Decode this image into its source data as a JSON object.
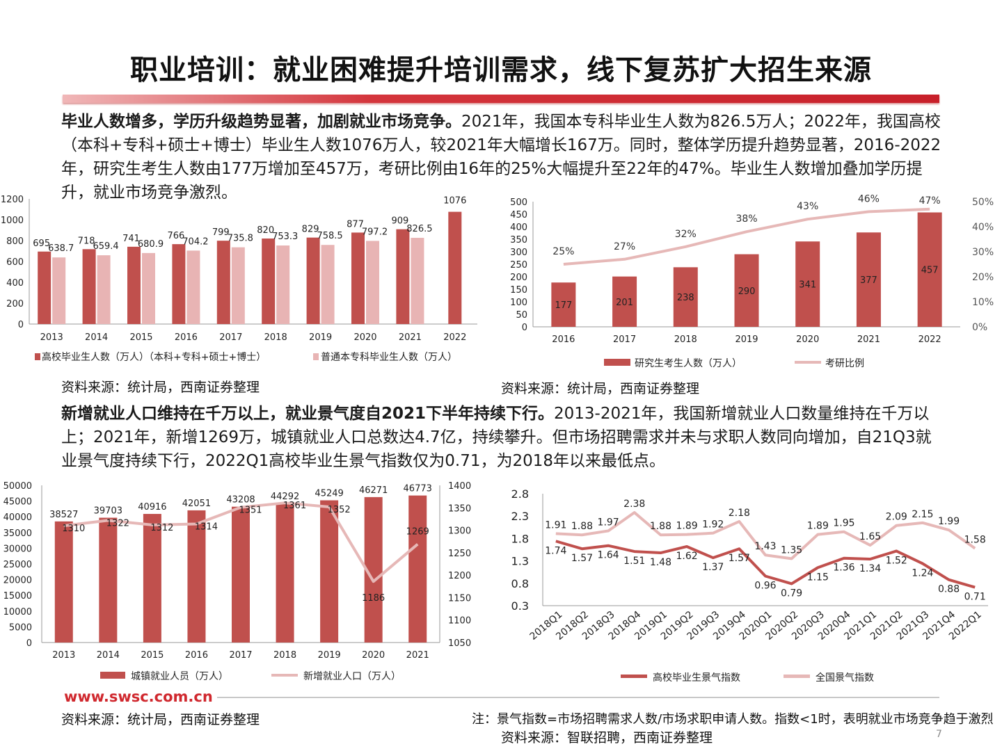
{
  "title": "职业培训：就业困难提升培训需求，线下复苏扩大招生来源",
  "section1": {
    "lead": "毕业人数增多，学历升级趋势显著，加剧就业市场竞争。",
    "body": "2021年，我国本专科毕业生人数为826.5万人；2022年，我国高校（本科+专科+硕士+博士）毕业生人数1076万人，较2021年大幅增长167万。同时，整体学历提升趋势显著，2016-2022年，研究生考生人数由177万增加至457万，考研比例由16年的25%大幅提升至22年的47%。毕业生人数增加叠加学历提升，就业市场竞争激烈。",
    "source_left": "资料来源：统计局，西南证券整理",
    "source_right": "资料来源：统计局，西南证券整理"
  },
  "section2": {
    "lead": "新增就业人口维持在千万以上，就业景气度自2021下半年持续下行。",
    "body": "2013-2021年，我国新增就业人口数量维持在千万以上；2021年，新增1269万，城镇就业人口总数达4.7亿，持续攀升。但市场招聘需求并未与求职人数同向增加，自21Q3就业景气度持续下行，2022Q1高校毕业生景气指数仅为0.71，为2018年以来最低点。",
    "source_left": "资料来源：统计局，西南证券整理",
    "note_right": "注：景气指数=市场招聘需求人数/市场求职申请人数。指数<1时，表明就业市场竞争趋于激烈",
    "source_right": "资料来源：智联招聘，西南证券整理"
  },
  "footer": {
    "url": "www.swsc.com.cn",
    "page": "7"
  },
  "colors": {
    "dark_red": "#c0504d",
    "light_pink": "#e8b4b4",
    "line_pink": "#e6b8b7",
    "line_red": "#c0504d"
  },
  "chart_data": [
    {
      "type": "bar",
      "categories": [
        "2013",
        "2014",
        "2015",
        "2016",
        "2017",
        "2018",
        "2019",
        "2020",
        "2021",
        "2022"
      ],
      "series": [
        {
          "name": "高校毕业生人数（万人）（本科+专科+硕士+博士）",
          "values": [
            695,
            718,
            741,
            766,
            799,
            820,
            829,
            877,
            909,
            1076
          ]
        },
        {
          "name": "普通本专科毕业生人数（万人）",
          "values": [
            638.7,
            659.4,
            680.9,
            704.2,
            735.8,
            753.3,
            758.5,
            797.2,
            826.5,
            null
          ]
        }
      ],
      "data_labels": {
        "series1": [
          "695",
          "718",
          "741",
          "766",
          "799",
          "820",
          "829",
          "877",
          "909",
          "1076"
        ],
        "series2": [
          "638.7",
          "659.4",
          "680.9",
          "704.2",
          "735.8",
          "753.3",
          "758.5",
          "797.2",
          "826.5",
          ""
        ]
      },
      "ylim": [
        0,
        1200
      ],
      "yticks": [
        "0",
        "200",
        "400",
        "600",
        "800",
        "1000",
        "1200"
      ],
      "legend": "bottom"
    },
    {
      "type": "bar",
      "categories": [
        "2016",
        "2017",
        "2018",
        "2019",
        "2020",
        "2021",
        "2022"
      ],
      "series": [
        {
          "name": "研究生考生人数（万人）",
          "values": [
            177,
            201,
            238,
            290,
            341,
            377,
            457
          ]
        },
        {
          "name": "考研比例",
          "values": [
            25,
            27,
            32,
            38,
            43,
            46,
            47
          ]
        }
      ],
      "data_labels": {
        "series1": [
          "177",
          "201",
          "238",
          "290",
          "341",
          "377",
          "457"
        ],
        "series2": [
          "25%",
          "27%",
          "32%",
          "38%",
          "43%",
          "46%",
          "47%"
        ]
      },
      "ylim": [
        0,
        500
      ],
      "yticks": [
        "0",
        "50",
        "100",
        "150",
        "200",
        "250",
        "300",
        "350",
        "400",
        "450",
        "500"
      ],
      "y2lim": [
        0,
        50
      ],
      "y2ticks": [
        "0%",
        "10%",
        "20%",
        "30%",
        "40%",
        "50%"
      ],
      "legend": "bottom"
    },
    {
      "type": "bar",
      "categories": [
        "2013",
        "2014",
        "2015",
        "2016",
        "2017",
        "2018",
        "2019",
        "2020",
        "2021"
      ],
      "series": [
        {
          "name": "城镇就业人员（万人）",
          "values": [
            38527,
            39703,
            40916,
            42051,
            43208,
            44292,
            45249,
            46271,
            46773
          ]
        },
        {
          "name": "新增就业人口（万人）",
          "values": [
            1310,
            1322,
            1312,
            1314,
            1351,
            1361,
            1352,
            1186,
            1269
          ]
        }
      ],
      "data_labels": {
        "series1": [
          "38527",
          "39703",
          "40916",
          "42051",
          "43208",
          "44292",
          "45249",
          "46271",
          "46773"
        ],
        "series2": [
          "1310",
          "1322",
          "1312",
          "1314",
          "1351",
          "1361",
          "1352",
          "1186",
          "1269"
        ]
      },
      "ylim": [
        0,
        50000
      ],
      "yticks": [
        "0",
        "5000",
        "10000",
        "15000",
        "20000",
        "25000",
        "30000",
        "35000",
        "40000",
        "45000",
        "50000"
      ],
      "y2lim": [
        1050,
        1400
      ],
      "y2ticks": [
        "1050",
        "1100",
        "1150",
        "1200",
        "1250",
        "1300",
        "1350",
        "1400"
      ],
      "legend": "bottom"
    },
    {
      "type": "line",
      "categories": [
        "2018Q1",
        "2018Q2",
        "2018Q3",
        "2018Q4",
        "2019Q1",
        "2019Q2",
        "2019Q3",
        "2019Q4",
        "2020Q1",
        "2020Q2",
        "2020Q3",
        "2020Q4",
        "2021Q1",
        "2021Q2",
        "2021Q3",
        "2021Q4",
        "2022Q1"
      ],
      "series": [
        {
          "name": "高校毕业生景气指数",
          "values": [
            1.74,
            1.57,
            1.64,
            1.51,
            1.48,
            1.62,
            1.37,
            1.57,
            0.96,
            0.79,
            1.15,
            1.36,
            1.34,
            1.52,
            1.24,
            0.88,
            0.71
          ]
        },
        {
          "name": "全国景气指数",
          "values": [
            1.91,
            1.88,
            1.97,
            2.38,
            1.88,
            1.89,
            1.92,
            2.18,
            1.43,
            1.35,
            1.89,
            1.95,
            1.65,
            2.09,
            2.15,
            1.99,
            1.58
          ]
        }
      ],
      "data_labels": {
        "series1": [
          "1.74",
          "1.57",
          "1.64",
          "1.51",
          "1.48",
          "1.62",
          "1.37",
          "1.57",
          "0.96",
          "0.79",
          "1.15",
          "1.36",
          "1.34",
          "1.52",
          "1.24",
          "0.88",
          "0.71"
        ],
        "series2": [
          "1.91",
          "1.88",
          "1.97",
          "2.38",
          "1.88",
          "1.89",
          "1.92",
          "2.18",
          "1.43",
          "1.35",
          "1.89",
          "1.95",
          "1.65",
          "2.09",
          "2.15",
          "1.99",
          "1.58"
        ]
      },
      "ylim": [
        0.3,
        2.8
      ],
      "yticks": [
        "0.3",
        "0.8",
        "1.3",
        "1.8",
        "2.3",
        "2.8"
      ],
      "legend": "bottom"
    }
  ]
}
